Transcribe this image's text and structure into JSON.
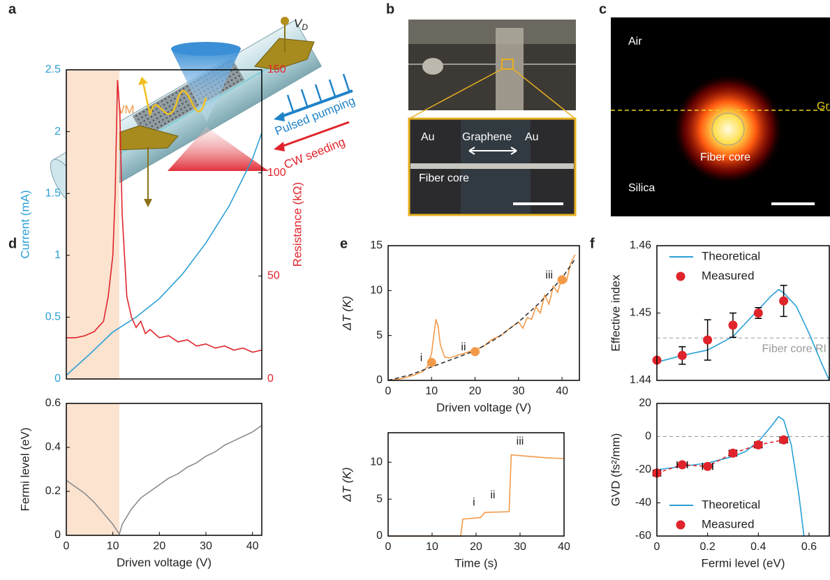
{
  "panel_labels": [
    "a",
    "b",
    "c",
    "d",
    "e",
    "f"
  ],
  "schematic": {
    "voltage_label": "V",
    "voltage_subscript": "D",
    "fwm": "FWM",
    "pump": "Pulsed pumping",
    "seed": "CW seeding"
  },
  "micrograph": {
    "electrode_left": "Au",
    "graphene": "Graphene",
    "electrode_right": "Au",
    "fiber_core": "Fiber core"
  },
  "mode_profile": {
    "air": "Air",
    "graphene": "Gr",
    "fiber_core": "Fiber core",
    "silica": "Silica"
  },
  "chart_data": [
    {
      "type": "line",
      "xlim": [
        0,
        42
      ],
      "ylim": [
        0,
        2.5
      ],
      "yticks": [
        0,
        0.5,
        1,
        1.5,
        2,
        2.5
      ],
      "y2lim": [
        0,
        150
      ],
      "y2ticks": [
        0,
        50,
        100,
        150
      ],
      "ylabel": "Current (mA)",
      "y2label": "Resistance (kΩ)",
      "y_color": "#2a9fd6",
      "y2_color": "#e0242b",
      "shade": [
        0,
        11.4
      ],
      "shade_color": "#fbe3d0",
      "series": [
        {
          "color": "#2a9fd6",
          "x": [
            0,
            5,
            10,
            15,
            20,
            25,
            30,
            35,
            40,
            42
          ],
          "values": [
            0.03,
            0.2,
            0.38,
            0.5,
            0.65,
            0.85,
            1.1,
            1.4,
            1.78,
            1.99
          ]
        },
        {
          "color": "#e0242b",
          "axis": "y2",
          "x": [
            0,
            2,
            4,
            6,
            8,
            9,
            10,
            10.5,
            11,
            11.5,
            12,
            13,
            14,
            15,
            16,
            17,
            18,
            20,
            22,
            24,
            26,
            28,
            30,
            32,
            34,
            36,
            38,
            40,
            42
          ],
          "values": [
            20,
            20,
            21,
            23,
            28,
            40,
            60,
            90,
            145,
            130,
            80,
            40,
            30,
            25,
            28,
            22,
            24,
            20,
            21,
            18,
            19,
            16,
            17,
            15,
            16,
            14,
            15,
            13,
            14
          ]
        }
      ]
    },
    {
      "type": "line",
      "xlim": [
        0,
        42
      ],
      "ylim": [
        0,
        0.6
      ],
      "yticks": [
        0,
        0.2,
        0.4,
        0.6
      ],
      "xticks": [
        0,
        10,
        20,
        30,
        40
      ],
      "xlabel": "Driven voltage (V)",
      "ylabel": "Fermi level (eV)",
      "shade": [
        0,
        11.4
      ],
      "shade_color": "#fbe3d0",
      "series": [
        {
          "color": "#8c8c8c",
          "x": [
            0,
            2,
            4,
            6,
            8,
            10,
            11.4,
            12,
            14,
            16,
            18,
            20,
            22,
            24,
            26,
            28,
            30,
            32,
            34,
            36,
            38,
            40,
            42
          ],
          "values": [
            0.25,
            0.22,
            0.19,
            0.15,
            0.1,
            0.05,
            0.005,
            0.05,
            0.12,
            0.17,
            0.2,
            0.23,
            0.26,
            0.28,
            0.31,
            0.33,
            0.36,
            0.38,
            0.41,
            0.43,
            0.45,
            0.47,
            0.5
          ]
        }
      ]
    },
    {
      "type": "line",
      "xlim": [
        0,
        44
      ],
      "ylim": [
        0,
        15
      ],
      "yticks": [
        0,
        5,
        10,
        15
      ],
      "xticks": [
        0,
        10,
        20,
        30,
        40
      ],
      "xlabel": "Driven voltage (V)",
      "ylabel": "ΔT (K)",
      "series": [
        {
          "color": "#f39a4a",
          "x": [
            0,
            2,
            4,
            6,
            8,
            9,
            10,
            10.5,
            11,
            11.5,
            12,
            13,
            14,
            16,
            18,
            20,
            22,
            24,
            26,
            28,
            30,
            31,
            32,
            33,
            34,
            35,
            36,
            37,
            38,
            39,
            40,
            41,
            42,
            43
          ],
          "values": [
            0,
            0.1,
            0.3,
            0.6,
            1,
            1.5,
            3,
            5,
            6.8,
            6,
            4,
            2.6,
            2.5,
            2.8,
            3.1,
            3.4,
            3.8,
            4.6,
            5,
            5.8,
            6.5,
            5.8,
            7,
            6.8,
            8.2,
            7.5,
            9.5,
            8.5,
            10.5,
            9.8,
            11.5,
            11,
            13,
            14
          ]
        },
        {
          "color": "#333333",
          "dash": true,
          "x": [
            0,
            5,
            10,
            15,
            20,
            25,
            30,
            35,
            40,
            43
          ],
          "values": [
            0,
            0.6,
            1.5,
            2.4,
            3.3,
            4.7,
            6.5,
            8.7,
            11.4,
            13.5
          ]
        },
        {
          "type": "scatter",
          "color": "#f39a4a",
          "x": [
            10,
            20,
            40
          ],
          "values": [
            2,
            3.2,
            11.2
          ],
          "point_labels": [
            "i",
            "ii",
            "iii"
          ]
        }
      ]
    },
    {
      "type": "line",
      "xlim": [
        0,
        40
      ],
      "ylim": [
        0,
        14
      ],
      "yticks": [
        0,
        5,
        10
      ],
      "xticks": [
        0,
        10,
        20,
        30,
        40
      ],
      "xlabel": "Time (s)",
      "ylabel": "ΔT (K)",
      "annotations": [
        {
          "text": "i",
          "x": 19.5,
          "y": 4.5
        },
        {
          "text": "ii",
          "x": 23.8,
          "y": 5.5
        },
        {
          "text": "iii",
          "x": 30,
          "y": 12.8
        }
      ],
      "series": [
        {
          "color": "#f39a4a",
          "x": [
            0,
            16.5,
            17,
            21,
            22,
            27.5,
            28,
            32,
            36,
            40
          ],
          "values": [
            0,
            0,
            2.3,
            2.5,
            3.2,
            3.3,
            11,
            10.8,
            10.6,
            10.5
          ]
        }
      ]
    },
    {
      "type": "line",
      "xlim": [
        0,
        0.68
      ],
      "ylim": [
        1.44,
        1.46
      ],
      "yticks": [
        1.44,
        1.45,
        1.46
      ],
      "ylabel": "Effective index",
      "legend": "upper left",
      "reference_line": {
        "value": 1.4463,
        "label": "Fiber core RI"
      },
      "series": [
        {
          "name": "Theoretical",
          "color": "#2a9fd6",
          "x": [
            0,
            0.1,
            0.2,
            0.3,
            0.4,
            0.45,
            0.48,
            0.5,
            0.55,
            0.6,
            0.65,
            0.68
          ],
          "values": [
            1.4427,
            1.4437,
            1.4445,
            1.4465,
            1.4505,
            1.4525,
            1.4535,
            1.453,
            1.451,
            1.447,
            1.4425,
            1.44
          ]
        },
        {
          "name": "Measured",
          "type": "scatter",
          "color": "#e0242b",
          "x": [
            0,
            0.1,
            0.2,
            0.3,
            0.4,
            0.5
          ],
          "values": [
            1.443,
            1.4437,
            1.446,
            1.4482,
            1.45,
            1.4518
          ],
          "errors": [
            0,
            0.0013,
            0.003,
            0.0018,
            0.0008,
            0.0023
          ],
          "x_errors": [
            0.01,
            0.01,
            0.01,
            0.01,
            0.01,
            0.01
          ]
        }
      ]
    },
    {
      "type": "line",
      "xlim": [
        0,
        0.68
      ],
      "ylim": [
        -60,
        20
      ],
      "yticks": [
        -60,
        -40,
        -20,
        0,
        20
      ],
      "xticks": [
        0,
        0.2,
        0.4,
        0.6
      ],
      "xlabel": "Fermi level (eV)",
      "ylabel": "GVD (fs²/mm)",
      "legend": "lower left",
      "reference_line": {
        "value": 0
      },
      "series": [
        {
          "name": "Theoretical",
          "color": "#2a9fd6",
          "x": [
            0,
            0.1,
            0.2,
            0.3,
            0.35,
            0.4,
            0.45,
            0.48,
            0.5,
            0.53,
            0.56,
            0.58
          ],
          "values": [
            -20,
            -18,
            -16,
            -12,
            -9,
            -3,
            6,
            12,
            10,
            -5,
            -35,
            -60
          ]
        },
        {
          "name": "Measured",
          "type": "scatter",
          "color": "#e0242b",
          "connect": true,
          "x": [
            0,
            0.1,
            0.2,
            0.3,
            0.4,
            0.5
          ],
          "values": [
            -22,
            -17,
            -18,
            -10,
            -5,
            -2
          ],
          "x_errors": [
            0.015,
            0.02,
            0.02,
            0.015,
            0.015,
            0.015
          ]
        }
      ]
    }
  ]
}
